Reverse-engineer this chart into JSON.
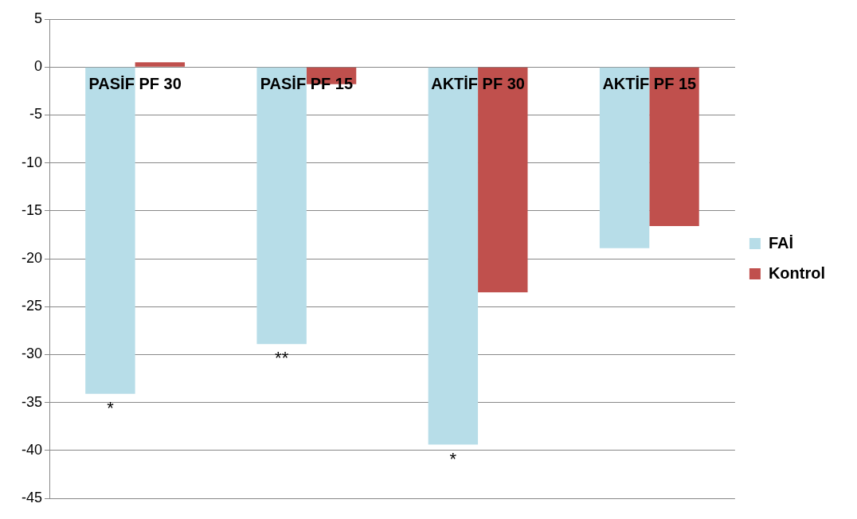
{
  "chart_data": {
    "type": "bar",
    "categories": [
      "PASİF PF 30",
      "PASİF PF 15",
      "AKTİF PF 30",
      "AKTİF PF 15"
    ],
    "series": [
      {
        "name": "FAİ",
        "color": "#b7dde8",
        "values": [
          -34.1,
          -28.9,
          -39.4,
          -18.9
        ]
      },
      {
        "name": "Kontrol",
        "color": "#c0504d",
        "values": [
          0.5,
          -1.8,
          -23.5,
          -16.6
        ]
      }
    ],
    "ylim": [
      -45,
      5
    ],
    "yticks": [
      5,
      0,
      -5,
      -10,
      -15,
      -20,
      -25,
      -30,
      -35,
      -40,
      -45
    ],
    "grid": "y",
    "legend": "right",
    "annotations": [
      {
        "text": "*",
        "x": "PASİF PF 30",
        "y": -34.1
      },
      {
        "text": "**",
        "x": "PASİF PF 15",
        "y": -28.9
      },
      {
        "text": "*",
        "x": "AKTİF PF 30",
        "y": -39.4
      }
    ]
  }
}
